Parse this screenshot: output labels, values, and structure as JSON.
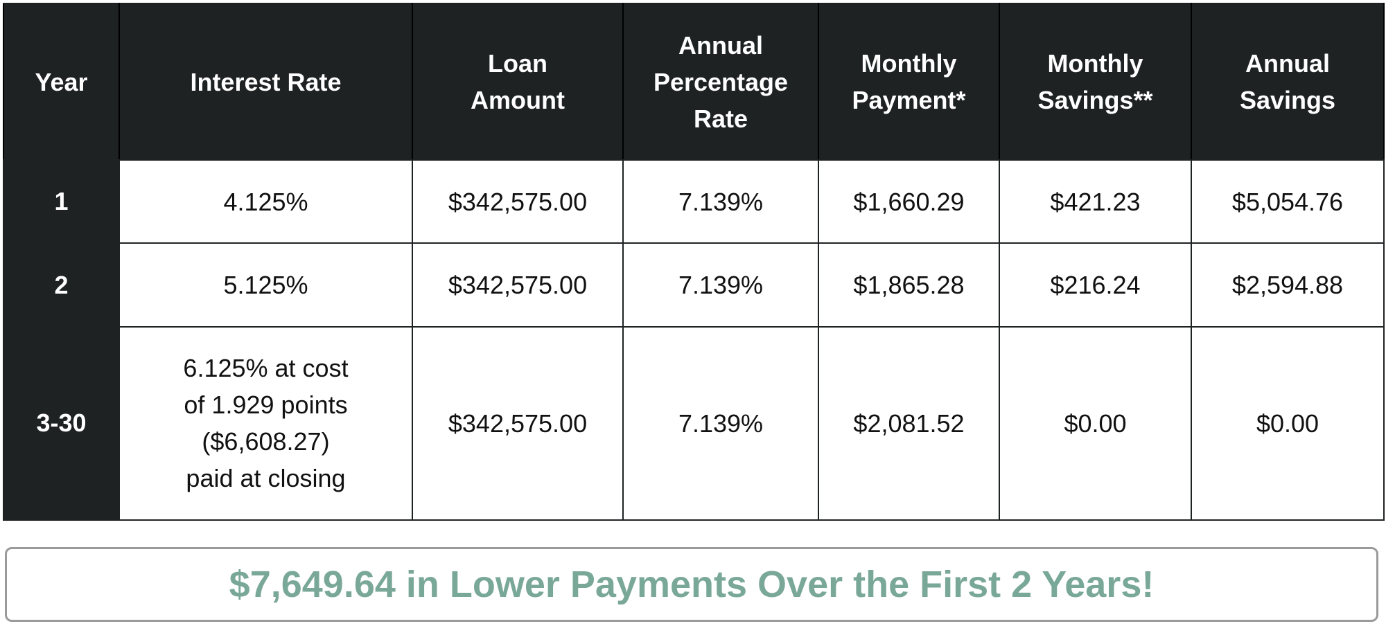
{
  "table": {
    "headers": [
      "Year",
      "Interest Rate",
      "Loan\nAmount",
      "Annual\nPercentage\nRate",
      "Monthly\nPayment*",
      "Monthly\nSavings**",
      "Annual\nSavings"
    ],
    "rows": [
      {
        "year": "1",
        "interest_rate": "4.125%",
        "loan_amount": "$342,575.00",
        "apr": "7.139%",
        "monthly_payment": "$1,660.29",
        "monthly_savings": "$421.23",
        "annual_savings": "$5,054.76"
      },
      {
        "year": "2",
        "interest_rate": "5.125%",
        "loan_amount": "$342,575.00",
        "apr": "7.139%",
        "monthly_payment": "$1,865.28",
        "monthly_savings": "$216.24",
        "annual_savings": "$2,594.88"
      },
      {
        "year": "3-30",
        "interest_rate": "6.125% at cost\nof 1.929 points\n($6,608.27)\npaid at closing",
        "loan_amount": "$342,575.00",
        "apr": "7.139%",
        "monthly_payment": "$2,081.52",
        "monthly_savings": "$0.00",
        "annual_savings": "$0.00"
      }
    ]
  },
  "banner": {
    "text": "$7,649.64 in Lower Payments Over the First 2 Years!"
  },
  "colors": {
    "header_bg": "#1e2222",
    "header_text": "#ffffff",
    "accent_green": "#7aa898",
    "banner_border": "#9a9a9a"
  }
}
